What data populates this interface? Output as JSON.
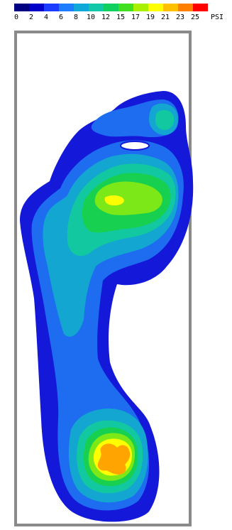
{
  "legend": {
    "ticks": [
      "0",
      "2",
      "4",
      "6",
      "8",
      "10",
      "12",
      "15",
      "17",
      "19",
      "21",
      "23",
      "25"
    ],
    "unit": "PSI",
    "colors": [
      "#000080",
      "#0000c8",
      "#1a3cff",
      "#1e7cff",
      "#10a8d8",
      "#12c8a8",
      "#10d060",
      "#40e020",
      "#a8f000",
      "#ffff00",
      "#ffc000",
      "#ff8000",
      "#ff0000"
    ]
  },
  "regions": {
    "outline": "#1418d8",
    "level_1": "#1e6cf0",
    "level_2": "#12a6d0",
    "level_3": "#12c8a0",
    "level_4": "#18d050",
    "level_5": "#7ce818",
    "level_6": "#ffff00",
    "level_7": "#ffa400",
    "hole": "#ffffff",
    "frame": "#8a8a8a"
  }
}
